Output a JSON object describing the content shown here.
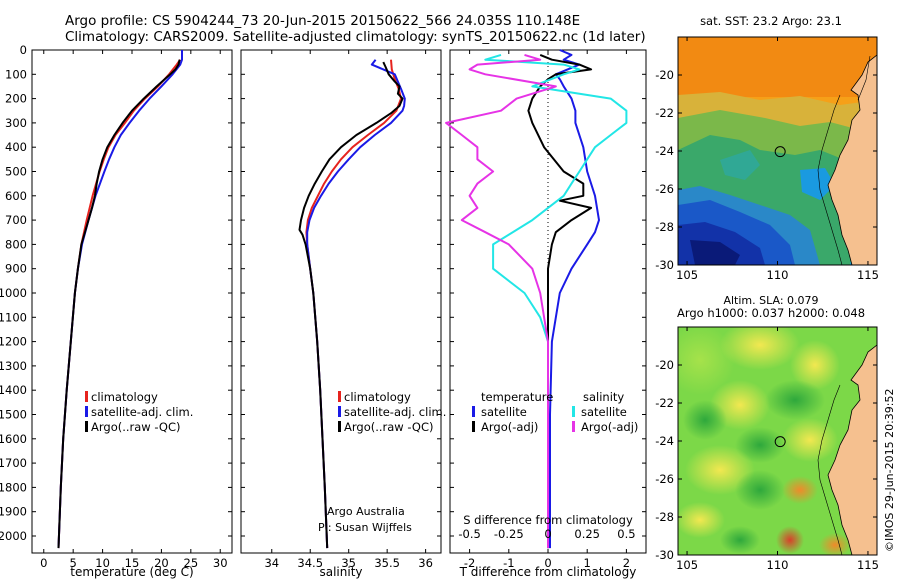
{
  "header": {
    "line1": "Argo profile: CS 5904244_73 20-Jun-2015 20150622_566 24.035S 110.148E",
    "line2": "Climatology: CARS2009. Satellite-adjusted climatology: synTS_20150622.nc (1d later)"
  },
  "colors": {
    "red": "#e6231e",
    "blue": "#1a1ae6",
    "black": "#000000",
    "magenta": "#e633e6",
    "cyan": "#22e6e6",
    "land": "#f5c08f"
  },
  "chart_data": [
    {
      "type": "line",
      "title": "",
      "xlabel": "temperature (deg C)",
      "ylabel": "",
      "xlim": [
        -2,
        32
      ],
      "ylim": [
        2070,
        0
      ],
      "xticks": [
        "0",
        "5",
        "10",
        "15",
        "20",
        "25",
        "30"
      ],
      "xtick_values": [
        0,
        5,
        10,
        15,
        20,
        25,
        30
      ],
      "yticks": [
        "0",
        "100",
        "200",
        "300",
        "400",
        "500",
        "600",
        "700",
        "800",
        "900",
        "1000",
        "1100",
        "1200",
        "1300",
        "1400",
        "1500",
        "1600",
        "1700",
        "1800",
        "1900",
        "2000"
      ],
      "ytick_values": [
        0,
        100,
        200,
        300,
        400,
        500,
        600,
        700,
        800,
        900,
        1000,
        1100,
        1200,
        1300,
        1400,
        1500,
        1600,
        1700,
        1800,
        1900,
        2000
      ],
      "legend": [
        "climatology",
        "satellite-adj. clim.",
        "Argo(..raw -QC)"
      ],
      "series": [
        {
          "name": "climatology",
          "color": "#e6231e",
          "depth": [
            40,
            60,
            100,
            150,
            200,
            250,
            300,
            350,
            400,
            450,
            500,
            600,
            700,
            800,
            900,
            1000,
            1200,
            1400,
            1600,
            1800,
            2050
          ],
          "values": [
            23.2,
            22.6,
            21.3,
            19.4,
            17.2,
            15.3,
            13.8,
            12.2,
            11.0,
            10.2,
            9.5,
            8.3,
            7.3,
            6.4,
            5.8,
            5.3,
            4.6,
            3.9,
            3.3,
            2.9,
            2.5
          ]
        },
        {
          "name": "satellite-adj. clim.",
          "color": "#1a1ae6",
          "depth": [
            0,
            40,
            60,
            100,
            150,
            200,
            250,
            300,
            350,
            400,
            450,
            500,
            600,
            700,
            800,
            900,
            1000,
            1200,
            1400,
            1600,
            1800,
            2050
          ],
          "values": [
            23.5,
            23.5,
            23.2,
            21.9,
            20.0,
            18.0,
            16.2,
            14.6,
            13.1,
            12.0,
            11.1,
            10.3,
            8.8,
            7.6,
            6.5,
            5.8,
            5.3,
            4.6,
            3.9,
            3.3,
            2.9,
            2.5
          ]
        },
        {
          "name": "Argo(..raw -QC)",
          "color": "#000000",
          "depth": [
            40,
            60,
            80,
            100,
            150,
            200,
            250,
            300,
            350,
            400,
            450,
            500,
            550,
            600,
            650,
            700,
            800,
            900,
            1000,
            1200,
            1400,
            1600,
            1800,
            2050
          ],
          "values": [
            23.1,
            22.9,
            22.4,
            21.5,
            19.2,
            17.0,
            15.0,
            13.4,
            12.0,
            10.8,
            10.0,
            9.4,
            9.0,
            8.7,
            8.2,
            7.6,
            6.4,
            5.8,
            5.3,
            4.6,
            3.9,
            3.3,
            2.9,
            2.5
          ]
        }
      ]
    },
    {
      "type": "line",
      "title": "",
      "xlabel": "salinity",
      "ylabel": "",
      "xlim": [
        33.6,
        36.2
      ],
      "ylim": [
        2070,
        0
      ],
      "xticks": [
        "34",
        "34.5",
        "35",
        "35.5",
        "36"
      ],
      "xtick_values": [
        34,
        34.5,
        35,
        35.5,
        36
      ],
      "legend": [
        "climatology",
        "satellite-adj. clim.",
        "Argo(..raw -QC)"
      ],
      "annotations": [
        "Argo Australia",
        "PI: Susan Wijffels"
      ],
      "series": [
        {
          "name": "climatology",
          "color": "#e6231e",
          "depth": [
            40,
            80,
            120,
            160,
            200,
            250,
            300,
            350,
            400,
            450,
            500,
            550,
            600,
            650,
            700,
            750,
            800,
            900,
            1000,
            1200,
            1400,
            1600,
            1800,
            2050
          ],
          "values": [
            35.55,
            35.56,
            35.6,
            35.65,
            35.68,
            35.62,
            35.46,
            35.25,
            35.05,
            34.9,
            34.78,
            34.68,
            34.6,
            34.52,
            34.47,
            34.45,
            34.46,
            34.5,
            34.54,
            34.59,
            34.63,
            34.66,
            34.69,
            34.72
          ]
        },
        {
          "name": "satellite-adj. clim.",
          "color": "#1a1ae6",
          "depth": [
            40,
            60,
            80,
            100,
            130,
            160,
            200,
            230,
            250,
            300,
            350,
            400,
            450,
            500,
            550,
            600,
            650,
            700,
            750,
            800,
            900,
            1000,
            1200,
            1400,
            1600,
            1800,
            2050
          ],
          "values": [
            35.35,
            35.3,
            35.45,
            35.6,
            35.64,
            35.68,
            35.73,
            35.72,
            35.7,
            35.55,
            35.34,
            35.15,
            35.0,
            34.86,
            34.74,
            34.64,
            34.55,
            34.49,
            34.46,
            34.46,
            34.5,
            34.54,
            34.59,
            34.63,
            34.66,
            34.69,
            34.72
          ]
        },
        {
          "name": "Argo(..raw -QC)",
          "color": "#000000",
          "depth": [
            50,
            70,
            100,
            130,
            150,
            180,
            200,
            230,
            260,
            300,
            350,
            400,
            450,
            500,
            550,
            600,
            650,
            700,
            740,
            760,
            800,
            900,
            1000,
            1200,
            1400,
            1600,
            1800,
            2050
          ],
          "values": [
            35.45,
            35.48,
            35.52,
            35.6,
            35.66,
            35.64,
            35.7,
            35.66,
            35.55,
            35.36,
            35.1,
            34.9,
            34.75,
            34.65,
            34.56,
            34.48,
            34.42,
            34.38,
            34.36,
            34.4,
            34.44,
            34.5,
            34.54,
            34.59,
            34.63,
            34.66,
            34.69,
            34.72
          ]
        }
      ]
    },
    {
      "type": "line",
      "title": "",
      "xlabel": "T difference from climatology",
      "xlabel_top": "S difference from climatology",
      "ylabel": "",
      "xlim": [
        -2.5,
        2.5
      ],
      "ylim": [
        2070,
        0
      ],
      "xticks": [
        "-2",
        "-1",
        "0",
        "1",
        "2"
      ],
      "xtick_values": [
        -2,
        -1,
        0,
        1,
        2
      ],
      "xticks_top": [
        "-0.5",
        "-0.25",
        "0",
        "0.25",
        "0.5"
      ],
      "xtick_top_values": [
        -0.5,
        -0.25,
        0,
        0.25,
        0.5
      ],
      "legend_headers": [
        "temperature",
        "salinity"
      ],
      "legend": [
        "satellite",
        "Argo(-adj)",
        "satellite",
        "Argo(-adj)"
      ],
      "series": [
        {
          "name": "temperature satellite",
          "color": "#1a1ae6",
          "depth": [
            0,
            20,
            40,
            60,
            80,
            100,
            120,
            150,
            200,
            250,
            300,
            400,
            500,
            600,
            700,
            750,
            800,
            900,
            1000,
            1200,
            1500,
            1800,
            2050
          ],
          "values": [
            0.3,
            0.6,
            0.4,
            0.8,
            0.5,
            0.2,
            0.3,
            0.4,
            0.6,
            0.7,
            0.7,
            0.9,
            1.0,
            1.2,
            1.3,
            1.2,
            1.0,
            0.6,
            0.3,
            0.1,
            0.05,
            0.05,
            0.05
          ]
        },
        {
          "name": "temperature Argo(-adj)",
          "color": "#000000",
          "depth": [
            20,
            40,
            60,
            80,
            100,
            120,
            150,
            200,
            250,
            300,
            400,
            500,
            550,
            600,
            620,
            650,
            700,
            750,
            800,
            900,
            1000,
            1200,
            1500,
            1800,
            2050
          ],
          "values": [
            -0.2,
            0.1,
            0.8,
            1.1,
            0.2,
            0.0,
            -0.2,
            -0.4,
            -0.5,
            -0.4,
            -0.1,
            0.4,
            0.9,
            0.9,
            0.3,
            1.1,
            0.6,
            0.2,
            0.1,
            0.0,
            0.0,
            0.0,
            0.0,
            0.0,
            0.0
          ]
        },
        {
          "name": "salinity satellite",
          "color": "#22e6e6",
          "depth": [
            20,
            40,
            60,
            80,
            100,
            150,
            200,
            250,
            300,
            350,
            400,
            450,
            500,
            550,
            600,
            700,
            800,
            900,
            1000,
            1100,
            1200,
            1500,
            1800,
            2050
          ],
          "values": [
            -0.3,
            -0.4,
            0.1,
            0.2,
            0.1,
            -0.1,
            0.4,
            0.5,
            0.5,
            0.4,
            0.3,
            0.25,
            0.2,
            0.15,
            0.1,
            -0.1,
            -0.35,
            -0.35,
            -0.15,
            -0.05,
            0.0,
            0.0,
            0.0,
            0.0
          ]
        },
        {
          "name": "salinity Argo(-adj)",
          "color": "#e633e6",
          "depth": [
            20,
            40,
            60,
            80,
            100,
            150,
            200,
            250,
            300,
            350,
            400,
            450,
            500,
            550,
            600,
            650,
            700,
            750,
            800,
            900,
            1000,
            1200,
            1500,
            1800,
            2050
          ],
          "values": [
            -0.15,
            -0.05,
            -0.45,
            -0.5,
            -0.4,
            0.05,
            -0.2,
            -0.3,
            -0.65,
            -0.55,
            -0.45,
            -0.45,
            -0.35,
            -0.45,
            -0.5,
            -0.45,
            -0.55,
            -0.4,
            -0.25,
            -0.1,
            -0.05,
            0.0,
            0.0,
            0.0,
            0.0
          ]
        }
      ]
    },
    {
      "type": "heatmap",
      "title": "sat. SST: 23.2 Argo: 23.1",
      "xlim": [
        104.5,
        115.5
      ],
      "ylim": [
        -30,
        -18
      ],
      "xticks": [
        "105",
        "110",
        "115"
      ],
      "xtick_values": [
        105,
        110,
        115
      ],
      "yticks": [
        "-20",
        "-22",
        "-24",
        "-26",
        "-28",
        "-30"
      ],
      "ytick_values": [
        -20,
        -22,
        -24,
        -26,
        -28,
        -30
      ],
      "marker": {
        "lon": 110.148,
        "lat": -24.035
      }
    },
    {
      "type": "heatmap",
      "title": "Altim. SLA: 0.079",
      "subtitle": "Argo h1000: 0.037 h2000: 0.048",
      "xlim": [
        104.5,
        115.5
      ],
      "ylim": [
        -30,
        -18
      ],
      "xticks": [
        "105",
        "110",
        "115"
      ],
      "xtick_values": [
        105,
        110,
        115
      ],
      "yticks": [
        "-20",
        "-22",
        "-24",
        "-26",
        "-28",
        "-30"
      ],
      "ytick_values": [
        -20,
        -22,
        -24,
        -26,
        -28,
        -30
      ],
      "marker": {
        "lon": 110.148,
        "lat": -24.035
      }
    }
  ],
  "footer": {
    "credit": "©IMOS 29-Jun-2015 20:39:52"
  }
}
